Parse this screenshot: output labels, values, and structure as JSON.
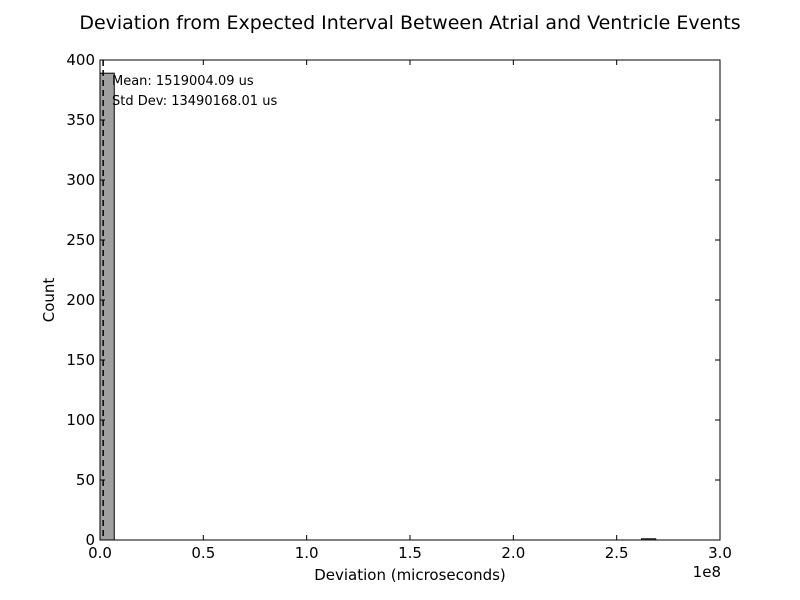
{
  "chart_data": {
    "type": "bar",
    "title": "Deviation from Expected Interval Between Atrial and Ventricle Events",
    "xlabel": "Deviation (microseconds)",
    "ylabel": "Count",
    "xlim": [
      0,
      300000000
    ],
    "ylim": [
      0,
      400
    ],
    "x_offset_label": "1e8",
    "x_ticks": [
      {
        "value": 0,
        "label": "0.0"
      },
      {
        "value": 50000000,
        "label": "0.5"
      },
      {
        "value": 100000000,
        "label": "1.0"
      },
      {
        "value": 150000000,
        "label": "1.5"
      },
      {
        "value": 200000000,
        "label": "2.0"
      },
      {
        "value": 250000000,
        "label": "2.5"
      },
      {
        "value": 300000000,
        "label": "3.0"
      }
    ],
    "y_ticks": [
      {
        "value": 0,
        "label": "0"
      },
      {
        "value": 50,
        "label": "50"
      },
      {
        "value": 100,
        "label": "100"
      },
      {
        "value": 150,
        "label": "150"
      },
      {
        "value": 200,
        "label": "200"
      },
      {
        "value": 250,
        "label": "250"
      },
      {
        "value": 300,
        "label": "300"
      },
      {
        "value": 350,
        "label": "350"
      },
      {
        "value": 400,
        "label": "400"
      }
    ],
    "bins": [
      {
        "x_start": 0,
        "x_end": 6900000,
        "count": 389
      },
      {
        "x_start": 262000000,
        "x_end": 268900000,
        "count": 1
      }
    ],
    "mean_line_x": 1519004.09,
    "annotations": {
      "mean": "Mean: 1519004.09 us",
      "std": "Std Dev: 13490168.01 us"
    },
    "colors": {
      "bar_fill": "#a0a0a0",
      "bar_stroke": "#000000",
      "mean_line": "#000000"
    },
    "grid": false
  }
}
